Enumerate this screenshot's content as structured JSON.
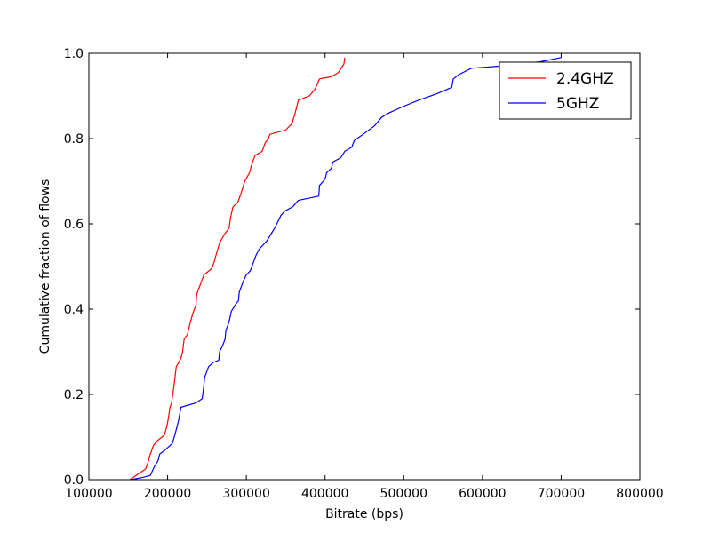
{
  "chart_data": {
    "type": "line",
    "title": "",
    "xlabel": "Bitrate (bps)",
    "ylabel": "Cumulative fraction of flows",
    "xlim": [
      100000,
      800000
    ],
    "ylim": [
      0.0,
      1.0
    ],
    "x_ticks": [
      100000,
      200000,
      300000,
      400000,
      500000,
      600000,
      700000,
      800000
    ],
    "x_tick_labels": [
      "100000",
      "200000",
      "300000",
      "400000",
      "500000",
      "600000",
      "700000",
      "800000"
    ],
    "y_ticks": [
      0.0,
      0.2,
      0.4,
      0.6,
      0.8,
      1.0
    ],
    "y_tick_labels": [
      "0.0",
      "0.2",
      "0.4",
      "0.6",
      "0.8",
      "1.0"
    ],
    "grid": false,
    "legend_position": "top-right",
    "series": [
      {
        "name": "2.4GHZ",
        "color": "#ff0000",
        "points": [
          [
            152000,
            0.0
          ],
          [
            160000,
            0.01
          ],
          [
            172000,
            0.025
          ],
          [
            175000,
            0.04
          ],
          [
            178000,
            0.06
          ],
          [
            182000,
            0.08
          ],
          [
            186000,
            0.09
          ],
          [
            196000,
            0.105
          ],
          [
            199000,
            0.125
          ],
          [
            201000,
            0.145
          ],
          [
            203000,
            0.17
          ],
          [
            205000,
            0.18
          ],
          [
            208000,
            0.22
          ],
          [
            211000,
            0.265
          ],
          [
            217000,
            0.285
          ],
          [
            219000,
            0.3
          ],
          [
            221000,
            0.33
          ],
          [
            225000,
            0.34
          ],
          [
            229000,
            0.37
          ],
          [
            232000,
            0.39
          ],
          [
            236000,
            0.41
          ],
          [
            237000,
            0.435
          ],
          [
            242000,
            0.46
          ],
          [
            246000,
            0.48
          ],
          [
            256000,
            0.495
          ],
          [
            259000,
            0.51
          ],
          [
            262000,
            0.53
          ],
          [
            266000,
            0.555
          ],
          [
            272000,
            0.575
          ],
          [
            278000,
            0.59
          ],
          [
            280000,
            0.615
          ],
          [
            283000,
            0.64
          ],
          [
            289000,
            0.65
          ],
          [
            293000,
            0.67
          ],
          [
            298000,
            0.7
          ],
          [
            304000,
            0.72
          ],
          [
            307000,
            0.74
          ],
          [
            311000,
            0.76
          ],
          [
            320000,
            0.77
          ],
          [
            324000,
            0.79
          ],
          [
            328000,
            0.8
          ],
          [
            330000,
            0.81
          ],
          [
            350000,
            0.82
          ],
          [
            358000,
            0.835
          ],
          [
            362000,
            0.86
          ],
          [
            366000,
            0.89
          ],
          [
            380000,
            0.9
          ],
          [
            387000,
            0.915
          ],
          [
            393000,
            0.94
          ],
          [
            408000,
            0.945
          ],
          [
            417000,
            0.955
          ],
          [
            424000,
            0.975
          ],
          [
            425000,
            0.99
          ]
        ]
      },
      {
        "name": "5GHZ",
        "color": "#0000ff",
        "points": [
          [
            153000,
            0.0
          ],
          [
            168000,
            0.005
          ],
          [
            178000,
            0.01
          ],
          [
            183000,
            0.03
          ],
          [
            188000,
            0.045
          ],
          [
            190000,
            0.06
          ],
          [
            197000,
            0.07
          ],
          [
            206000,
            0.085
          ],
          [
            210000,
            0.11
          ],
          [
            214000,
            0.14
          ],
          [
            217000,
            0.17
          ],
          [
            236000,
            0.18
          ],
          [
            244000,
            0.19
          ],
          [
            246000,
            0.22
          ],
          [
            247000,
            0.24
          ],
          [
            252000,
            0.265
          ],
          [
            258000,
            0.275
          ],
          [
            265000,
            0.28
          ],
          [
            266000,
            0.3
          ],
          [
            270000,
            0.315
          ],
          [
            273000,
            0.33
          ],
          [
            274000,
            0.35
          ],
          [
            278000,
            0.37
          ],
          [
            281000,
            0.395
          ],
          [
            286000,
            0.41
          ],
          [
            290000,
            0.42
          ],
          [
            291000,
            0.44
          ],
          [
            296000,
            0.465
          ],
          [
            300000,
            0.48
          ],
          [
            305000,
            0.49
          ],
          [
            309000,
            0.51
          ],
          [
            312000,
            0.525
          ],
          [
            316000,
            0.54
          ],
          [
            321000,
            0.55
          ],
          [
            326000,
            0.56
          ],
          [
            331000,
            0.575
          ],
          [
            336000,
            0.59
          ],
          [
            340000,
            0.605
          ],
          [
            344000,
            0.62
          ],
          [
            349000,
            0.63
          ],
          [
            359000,
            0.64
          ],
          [
            366000,
            0.655
          ],
          [
            392000,
            0.665
          ],
          [
            393000,
            0.69
          ],
          [
            400000,
            0.705
          ],
          [
            402000,
            0.72
          ],
          [
            408000,
            0.73
          ],
          [
            410000,
            0.745
          ],
          [
            420000,
            0.755
          ],
          [
            425000,
            0.77
          ],
          [
            434000,
            0.78
          ],
          [
            437000,
            0.795
          ],
          [
            452000,
            0.815
          ],
          [
            463000,
            0.83
          ],
          [
            472000,
            0.85
          ],
          [
            481000,
            0.86
          ],
          [
            499000,
            0.875
          ],
          [
            519000,
            0.89
          ],
          [
            542000,
            0.905
          ],
          [
            561000,
            0.92
          ],
          [
            563000,
            0.94
          ],
          [
            570000,
            0.95
          ],
          [
            586000,
            0.965
          ],
          [
            623000,
            0.97
          ],
          [
            643000,
            0.975
          ],
          [
            673000,
            0.98
          ],
          [
            700000,
            0.99
          ]
        ]
      }
    ]
  }
}
